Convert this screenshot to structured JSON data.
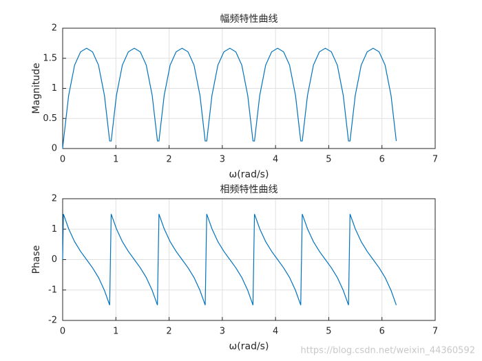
{
  "chart_data": [
    {
      "type": "line",
      "title": "幅频特性曲线",
      "xlabel": "ω(rad/s)",
      "ylabel": "Magnitude",
      "color": "#0072bd",
      "grid": true,
      "xlim": [
        0,
        7
      ],
      "xticks": [
        0,
        1,
        2,
        3,
        4,
        5,
        6,
        7
      ],
      "ylim": [
        0,
        2
      ],
      "yticks": [
        0,
        0.5,
        1,
        1.5,
        2
      ],
      "x": [
        0,
        0.0143,
        0.1122,
        0.2244,
        0.3366,
        0.4488,
        0.561,
        0.6732,
        0.7854,
        0.8833,
        0.9119,
        1.0098,
        1.122,
        1.2342,
        1.3464,
        1.4586,
        1.5708,
        1.683,
        1.7809,
        1.8095,
        1.9074,
        2.0196,
        2.1318,
        2.244,
        2.3562,
        2.4684,
        2.5806,
        2.6785,
        2.7071,
        2.805,
        2.9172,
        3.0294,
        3.1416,
        3.2538,
        3.366,
        3.4782,
        3.5761,
        3.6047,
        3.7026,
        3.8148,
        3.927,
        4.0392,
        4.1514,
        4.2636,
        4.3758,
        4.4737,
        4.5023,
        4.6002,
        4.7124,
        4.8246,
        4.9368,
        5.049,
        5.1612,
        5.2734,
        5.3713,
        5.3999,
        5.4978,
        5.61,
        5.7222,
        5.8344,
        5.9466,
        6.0588,
        6.171,
        6.2689
      ],
      "values": [
        0,
        0.125,
        0.88,
        1.387,
        1.607,
        1.667,
        1.607,
        1.387,
        0.88,
        0.125,
        0.125,
        0.88,
        1.387,
        1.607,
        1.667,
        1.607,
        1.387,
        0.88,
        0.125,
        0.125,
        0.88,
        1.387,
        1.607,
        1.667,
        1.607,
        1.387,
        0.88,
        0.125,
        0.125,
        0.88,
        1.387,
        1.607,
        1.667,
        1.607,
        1.387,
        0.88,
        0.125,
        0.125,
        0.88,
        1.387,
        1.607,
        1.667,
        1.607,
        1.387,
        0.88,
        0.125,
        0.125,
        0.88,
        1.387,
        1.607,
        1.667,
        1.607,
        1.387,
        0.88,
        0.125,
        0.125,
        0.88,
        1.387,
        1.607,
        1.667,
        1.607,
        1.387,
        0.88,
        0.125
      ]
    },
    {
      "type": "line",
      "title": "相频特性曲线",
      "xlabel": "ω(rad/s)",
      "ylabel": "Phase",
      "color": "#0072bd",
      "grid": true,
      "xlim": [
        0,
        7
      ],
      "xticks": [
        0,
        1,
        2,
        3,
        4,
        5,
        6,
        7
      ],
      "ylim": [
        -2,
        2
      ],
      "yticks": [
        -2,
        -1,
        0,
        1,
        2
      ],
      "x": [
        0,
        0.0143,
        0.1122,
        0.2244,
        0.3366,
        0.4488,
        0.561,
        0.6732,
        0.7854,
        0.8833,
        0.9119,
        1.0098,
        1.122,
        1.2342,
        1.3464,
        1.4586,
        1.5708,
        1.683,
        1.7809,
        1.8095,
        1.9074,
        2.0196,
        2.1318,
        2.244,
        2.3562,
        2.4684,
        2.5806,
        2.6785,
        2.7071,
        2.805,
        2.9172,
        3.0294,
        3.1416,
        3.2538,
        3.366,
        3.4782,
        3.5761,
        3.6047,
        3.7026,
        3.8148,
        3.927,
        4.0392,
        4.1514,
        4.2636,
        4.3758,
        4.4737,
        4.5023,
        4.6002,
        4.7124,
        4.8246,
        4.9368,
        5.049,
        5.1612,
        5.2734,
        5.3713,
        5.3999,
        5.4978,
        5.61,
        5.7222,
        5.8344,
        5.9466,
        6.0588,
        6.171,
        6.2689
      ],
      "values": [
        0,
        1.496,
        1.015,
        0.588,
        0.269,
        0,
        -0.269,
        -0.588,
        -1.015,
        -1.496,
        1.496,
        1.015,
        0.588,
        0.269,
        0,
        -0.269,
        -0.588,
        -1.015,
        -1.496,
        1.496,
        1.015,
        0.588,
        0.269,
        0,
        -0.269,
        -0.588,
        -1.015,
        -1.496,
        1.496,
        1.015,
        0.588,
        0.269,
        0,
        -0.269,
        -0.588,
        -1.015,
        -1.496,
        1.496,
        1.015,
        0.588,
        0.269,
        0,
        -0.269,
        -0.588,
        -1.015,
        -1.496,
        1.496,
        1.015,
        0.588,
        0.269,
        0,
        -0.269,
        -0.588,
        -1.015,
        -1.496,
        1.496,
        1.015,
        0.588,
        0.269,
        0,
        -0.269,
        -0.588,
        -1.015,
        -1.496
      ]
    }
  ],
  "watermark": "https://blog.csdn.net/weixin_44360592"
}
